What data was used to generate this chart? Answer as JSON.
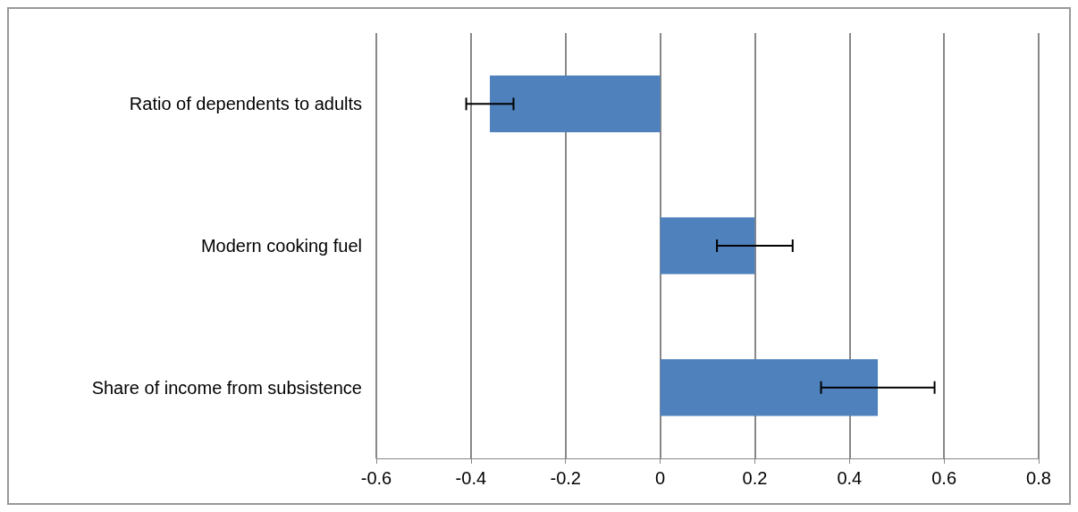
{
  "chart_data": {
    "type": "bar",
    "orientation": "horizontal",
    "categories": [
      "Ratio of dependents to adults",
      "Modern cooking fuel",
      "Share of income from subsistence"
    ],
    "values": [
      -0.36,
      0.2,
      0.46
    ],
    "errors": [
      0.05,
      0.08,
      0.12
    ],
    "color": "#4f81bd",
    "xlim": [
      -0.6,
      0.8
    ],
    "xticks": [
      -0.6,
      -0.4,
      -0.2,
      0,
      0.2,
      0.4,
      0.6,
      0.8
    ],
    "grid": "x"
  }
}
